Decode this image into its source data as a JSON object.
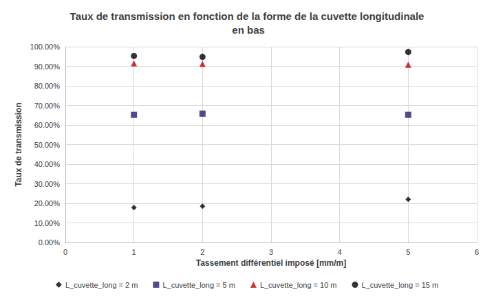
{
  "chart_data": {
    "type": "scatter",
    "title": "Taux de transmission en fonction de la forme de la cuvette longitudinale en bas",
    "x_label": "Tassement différentiel imposé [mm/m]",
    "y_label": "Taux de transmission",
    "xlim": [
      0,
      6
    ],
    "xticks": [
      0,
      1,
      2,
      3,
      4,
      5,
      6
    ],
    "ylim": [
      0,
      100
    ],
    "yticks": [
      {
        "value": 0,
        "label": "0.00%"
      },
      {
        "value": 10,
        "label": "10.00%"
      },
      {
        "value": 20,
        "label": "20.00%"
      },
      {
        "value": 30,
        "label": "30.00%"
      },
      {
        "value": 40,
        "label": "40.00%"
      },
      {
        "value": 50,
        "label": "50.00%"
      },
      {
        "value": 60,
        "label": "60.00%"
      },
      {
        "value": 70,
        "label": "70.00%"
      },
      {
        "value": 80,
        "label": "80.00%"
      },
      {
        "value": 90,
        "label": "90.00%"
      },
      {
        "value": 100,
        "label": "100.00%"
      }
    ],
    "grid": true,
    "legend": "bottom",
    "x": [
      1,
      2,
      5
    ],
    "series": [
      {
        "name": "L_cuvette_long = 2 m",
        "color": "#000000",
        "marker": "diamond",
        "values": [
          17.8,
          18.5,
          22.0
        ]
      },
      {
        "name": "L_cuvette_long = 5 m",
        "color": "#2e1a6e",
        "marker": "square",
        "values": [
          65.2,
          65.8,
          65.2
        ]
      },
      {
        "name": "L_cuvette_long = 10 m",
        "color": "#c00000",
        "marker": "triangle",
        "values": [
          91.5,
          91.2,
          90.8
        ]
      },
      {
        "name": "L_cuvette_long = 15 m",
        "color": "#000000",
        "marker": "circle",
        "values": [
          95.3,
          94.8,
          97.3
        ]
      }
    ]
  }
}
